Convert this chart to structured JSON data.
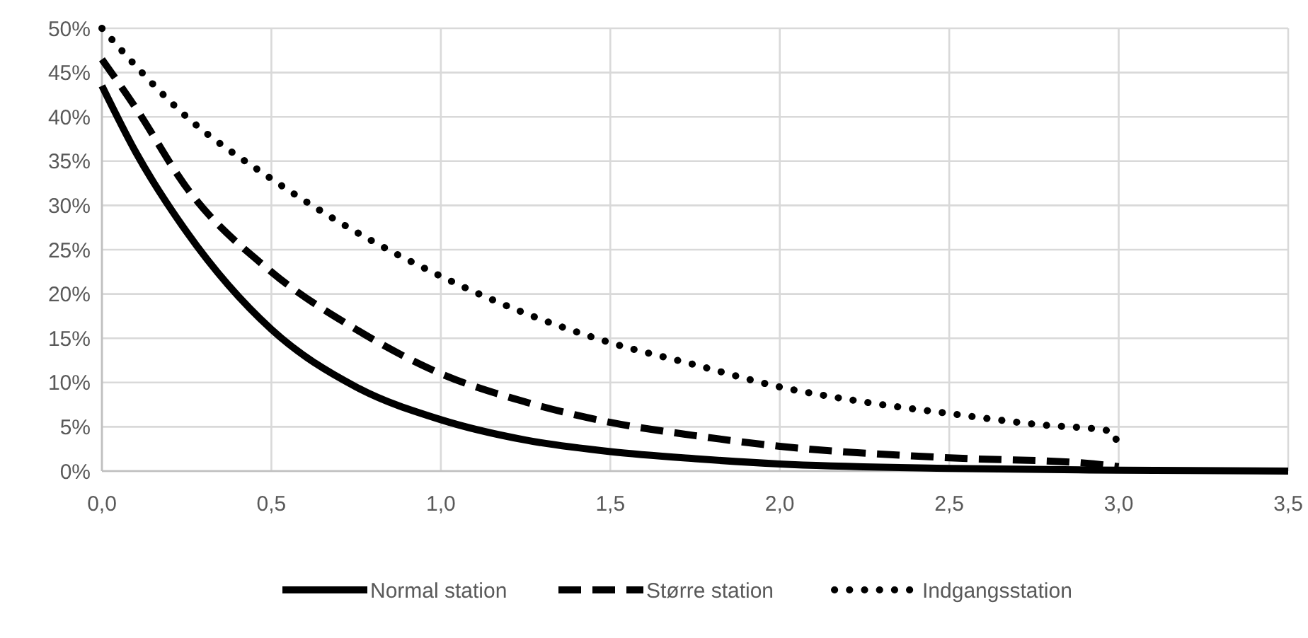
{
  "chart_data": {
    "type": "line",
    "xlim": [
      0,
      3.5
    ],
    "ylim": [
      0,
      0.5
    ],
    "xticks": [
      {
        "value": 0,
        "label": "0,0"
      },
      {
        "value": 0.5,
        "label": "0,5"
      },
      {
        "value": 1,
        "label": "1,0"
      },
      {
        "value": 1.5,
        "label": "1,5"
      },
      {
        "value": 2,
        "label": "2,0"
      },
      {
        "value": 2.5,
        "label": "2,5"
      },
      {
        "value": 3,
        "label": "3,0"
      },
      {
        "value": 3.5,
        "label": "3,5"
      }
    ],
    "yticks": [
      {
        "value": 0,
        "label": "0%"
      },
      {
        "value": 0.05,
        "label": "5%"
      },
      {
        "value": 0.1,
        "label": "10%"
      },
      {
        "value": 0.15,
        "label": "15%"
      },
      {
        "value": 0.2,
        "label": "20%"
      },
      {
        "value": 0.25,
        "label": "25%"
      },
      {
        "value": 0.3,
        "label": "30%"
      },
      {
        "value": 0.35,
        "label": "35%"
      },
      {
        "value": 0.4,
        "label": "40%"
      },
      {
        "value": 0.45,
        "label": "45%"
      },
      {
        "value": 0.5,
        "label": "50%"
      }
    ],
    "grid": true,
    "legend": "bottom",
    "series": [
      {
        "name": "Normal station",
        "color": "#000000",
        "line_style": "solid",
        "x": [
          0,
          0.1,
          0.25,
          0.5,
          0.75,
          1,
          1.25,
          1.5,
          1.75,
          2,
          2.5,
          3,
          3.5
        ],
        "values": [
          0.435,
          0.36,
          0.27,
          0.16,
          0.095,
          0.058,
          0.035,
          0.022,
          0.014,
          0.008,
          0.003,
          0.001,
          0
        ]
      },
      {
        "name": "Større station",
        "color": "#000000",
        "line_style": "dashed",
        "x": [
          0,
          0.1,
          0.25,
          0.5,
          0.75,
          1,
          1.25,
          1.5,
          1.75,
          2,
          2.5,
          2.9,
          3
        ],
        "values": [
          0.465,
          0.41,
          0.32,
          0.225,
          0.16,
          0.11,
          0.078,
          0.055,
          0.04,
          0.028,
          0.015,
          0.009,
          0.005
        ]
      },
      {
        "name": "Indgangsstation",
        "color": "#000000",
        "line_style": "dotted",
        "x": [
          0,
          0.25,
          0.5,
          0.75,
          1,
          1.25,
          1.5,
          1.75,
          2,
          2.25,
          2.5,
          2.75,
          2.98,
          3
        ],
        "values": [
          0.5,
          0.4,
          0.33,
          0.27,
          0.22,
          0.178,
          0.145,
          0.12,
          0.095,
          0.078,
          0.065,
          0.053,
          0.045,
          0.025
        ]
      }
    ]
  }
}
